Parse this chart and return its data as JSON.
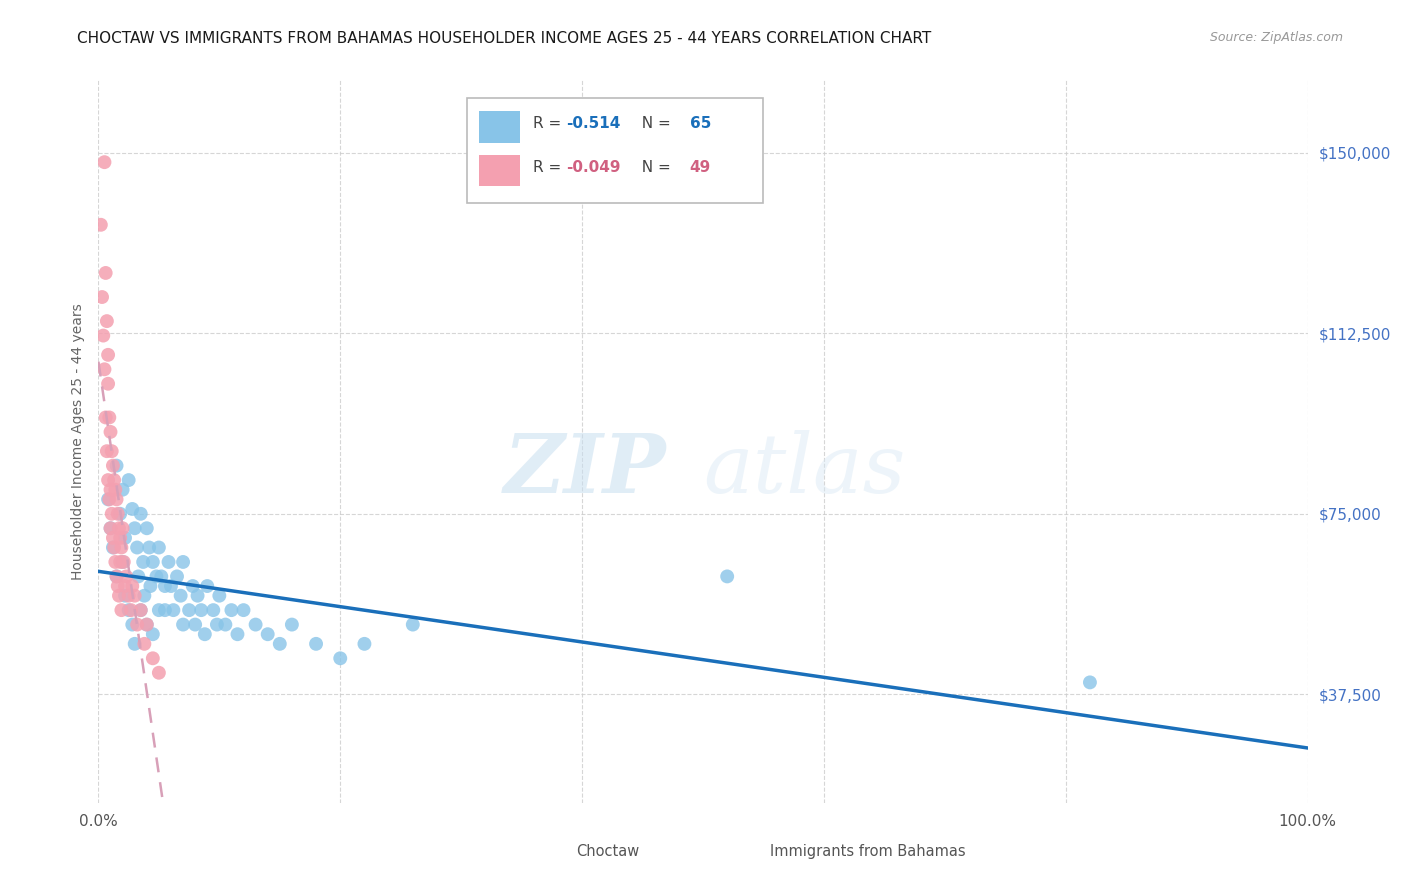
{
  "title": "CHOCTAW VS IMMIGRANTS FROM BAHAMAS HOUSEHOLDER INCOME AGES 25 - 44 YEARS CORRELATION CHART",
  "source": "Source: ZipAtlas.com",
  "ylabel": "Householder Income Ages 25 - 44 years",
  "ytick_values": [
    37500,
    75000,
    112500,
    150000
  ],
  "ymin": 15000,
  "ymax": 165000,
  "xmin": 0.0,
  "xmax": 1.0,
  "choctaw_R": "-0.514",
  "choctaw_N": "65",
  "bahamas_R": "-0.049",
  "bahamas_N": "49",
  "choctaw_color": "#88c4e8",
  "bahamas_color": "#f4a0b0",
  "choctaw_line_color": "#1a6fba",
  "bahamas_line_color": "#d8a0b8",
  "watermark_zip": "ZIP",
  "watermark_atlas": "atlas",
  "legend_label_1": "Choctaw",
  "legend_label_2": "Immigrants from Bahamas",
  "choctaw_x": [
    0.008,
    0.01,
    0.012,
    0.015,
    0.015,
    0.018,
    0.02,
    0.02,
    0.022,
    0.022,
    0.025,
    0.025,
    0.028,
    0.028,
    0.03,
    0.03,
    0.032,
    0.033,
    0.035,
    0.035,
    0.037,
    0.038,
    0.04,
    0.04,
    0.042,
    0.043,
    0.045,
    0.045,
    0.048,
    0.05,
    0.05,
    0.052,
    0.055,
    0.055,
    0.058,
    0.06,
    0.062,
    0.065,
    0.068,
    0.07,
    0.07,
    0.075,
    0.078,
    0.08,
    0.082,
    0.085,
    0.088,
    0.09,
    0.095,
    0.098,
    0.1,
    0.105,
    0.11,
    0.115,
    0.12,
    0.13,
    0.14,
    0.15,
    0.16,
    0.18,
    0.2,
    0.22,
    0.26,
    0.52,
    0.82
  ],
  "choctaw_y": [
    78000,
    72000,
    68000,
    85000,
    62000,
    75000,
    80000,
    65000,
    70000,
    58000,
    82000,
    55000,
    76000,
    52000,
    72000,
    48000,
    68000,
    62000,
    75000,
    55000,
    65000,
    58000,
    72000,
    52000,
    68000,
    60000,
    65000,
    50000,
    62000,
    68000,
    55000,
    62000,
    60000,
    55000,
    65000,
    60000,
    55000,
    62000,
    58000,
    52000,
    65000,
    55000,
    60000,
    52000,
    58000,
    55000,
    50000,
    60000,
    55000,
    52000,
    58000,
    52000,
    55000,
    50000,
    55000,
    52000,
    50000,
    48000,
    52000,
    48000,
    45000,
    48000,
    52000,
    62000,
    40000
  ],
  "bahamas_x": [
    0.002,
    0.003,
    0.004,
    0.005,
    0.005,
    0.006,
    0.006,
    0.007,
    0.007,
    0.008,
    0.008,
    0.008,
    0.009,
    0.009,
    0.01,
    0.01,
    0.01,
    0.011,
    0.011,
    0.012,
    0.012,
    0.013,
    0.013,
    0.014,
    0.014,
    0.015,
    0.015,
    0.016,
    0.016,
    0.017,
    0.017,
    0.018,
    0.018,
    0.019,
    0.019,
    0.02,
    0.021,
    0.022,
    0.023,
    0.025,
    0.027,
    0.028,
    0.03,
    0.032,
    0.035,
    0.038,
    0.04,
    0.045,
    0.05
  ],
  "bahamas_y": [
    135000,
    120000,
    112000,
    148000,
    105000,
    125000,
    95000,
    115000,
    88000,
    108000,
    82000,
    102000,
    95000,
    78000,
    92000,
    80000,
    72000,
    88000,
    75000,
    85000,
    70000,
    82000,
    68000,
    80000,
    65000,
    78000,
    62000,
    75000,
    60000,
    72000,
    58000,
    70000,
    65000,
    68000,
    55000,
    72000,
    65000,
    60000,
    62000,
    58000,
    55000,
    60000,
    58000,
    52000,
    55000,
    48000,
    52000,
    45000,
    42000
  ]
}
